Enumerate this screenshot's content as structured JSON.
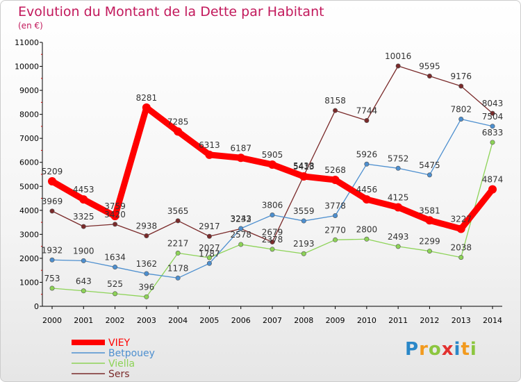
{
  "logo": {
    "text": "Proxiti"
  },
  "chart_data": {
    "type": "line",
    "title": "Evolution du Montant de la Dette par Habitant",
    "subtitle": "(en €)",
    "x": [
      "2000",
      "2001",
      "2002",
      "2003",
      "2004",
      "2005",
      "2006",
      "2007",
      "2008",
      "2009",
      "2010",
      "2011",
      "2012",
      "2013",
      "2014"
    ],
    "y_ticks": [
      0,
      1000,
      2000,
      3000,
      4000,
      5000,
      6000,
      7000,
      8000,
      9000,
      10000,
      11000
    ],
    "ylim": [
      0,
      11000
    ],
    "grid": false,
    "legend_position": "bottom-left",
    "series": [
      {
        "name": "VIEY",
        "color": "#ff0000",
        "values": [
          5209,
          4453,
          3759,
          8281,
          7285,
          6313,
          6187,
          5905,
          5413,
          5268,
          4456,
          4125,
          3581,
          3227,
          4874
        ]
      },
      {
        "name": "Betpouey",
        "color": "#4d8fcf",
        "values": [
          1932,
          1900,
          1634,
          1362,
          1178,
          1787,
          3243,
          3806,
          3559,
          3778,
          5926,
          5752,
          5475,
          7802,
          7504
        ]
      },
      {
        "name": "Viella",
        "color": "#8dd357",
        "values": [
          753,
          643,
          525,
          396,
          2217,
          2027,
          2578,
          2378,
          2193,
          2770,
          2800,
          2493,
          2299,
          2038,
          6833
        ]
      },
      {
        "name": "Sers",
        "color": "#7a2a2a",
        "values": [
          3969,
          3325,
          3420,
          2938,
          3565,
          2917,
          3232,
          2679,
          5438,
          8158,
          7744,
          10016,
          9595,
          9176,
          8043
        ]
      }
    ]
  }
}
